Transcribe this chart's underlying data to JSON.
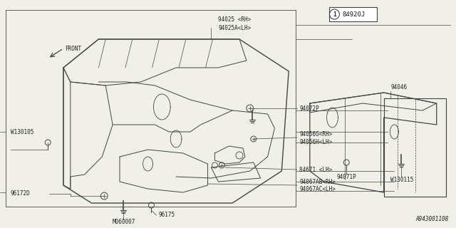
{
  "bg_color": "#f0efe8",
  "line_color": "#444444",
  "text_color": "#222222",
  "bottom_label": "A943001108",
  "labels_left": {
    "top": "94025 <RH>\n94025A<LH>",
    "p94072P": "94072P",
    "p94056": "94056G<RH>\n94056H<LH>",
    "p84671": "84671 <LH>",
    "p94067": "94067AB<RH>\n94067AC<LH>",
    "p96172D": "96172D",
    "p96175": "96175",
    "pM060007": "M060007",
    "pW130105": "W130105"
  },
  "labels_right": {
    "p94046": "94046",
    "p94071P": "94071P",
    "pW130115": "W130115"
  },
  "title_num": "84920J",
  "title_circ": "1"
}
